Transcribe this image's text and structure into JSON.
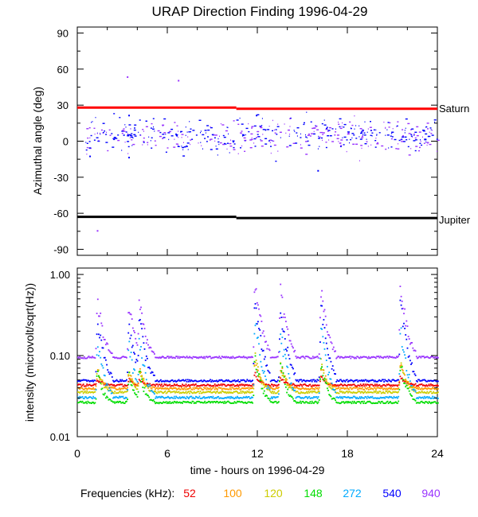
{
  "title": "URAP Direction Finding  1996-04-29",
  "colors": {
    "axis": "#000000",
    "saturn_line": "#ff0000",
    "jupiter_line": "#000000",
    "blue_points": "#0000ff",
    "purple_points": "#9933ff"
  },
  "chart_data": [
    {
      "type": "scatter",
      "panel": "top",
      "title": "URAP Direction Finding  1996-04-29",
      "xlabel": "",
      "ylabel": "Azimuthal angle (deg)",
      "xlim": [
        0,
        24
      ],
      "ylim": [
        -95,
        95
      ],
      "yticks": [
        90,
        60,
        30,
        0,
        -30,
        -60,
        -90
      ],
      "ytick_labels": [
        "90",
        "60",
        "30",
        "0",
        "-30",
        "-60",
        "-90"
      ],
      "reference_lines": [
        {
          "name": "Saturn",
          "segments": [
            {
              "x": [
                0,
                10.6
              ],
              "y": 28
            },
            {
              "x": [
                10.6,
                24
              ],
              "y": 27
            }
          ]
        },
        {
          "name": "Jupiter",
          "segments": [
            {
              "x": [
                0,
                10.6
              ],
              "y": -63
            },
            {
              "x": [
                10.6,
                24
              ],
              "y": -64
            }
          ]
        }
      ],
      "scatter_band": {
        "x": [
          0.5,
          24
        ],
        "center": 5,
        "spread": 12,
        "colors": [
          "#0000ff",
          "#9933ff"
        ]
      },
      "outliers": [
        {
          "x": 3.3,
          "y": 54,
          "color": "#9933ff"
        },
        {
          "x": 6.7,
          "y": 51,
          "color": "#9933ff"
        },
        {
          "x": 1.3,
          "y": -74,
          "color": "#9933ff"
        },
        {
          "x": 16.0,
          "y": -24,
          "color": "#0000ff"
        },
        {
          "x": 3.4,
          "y": 22,
          "color": "#0000ff"
        },
        {
          "x": 11.9,
          "y": 22,
          "color": "#0000ff"
        },
        {
          "x": 0.8,
          "y": -12,
          "color": "#0000ff"
        },
        {
          "x": 3.4,
          "y": -13,
          "color": "#0000ff"
        }
      ]
    },
    {
      "type": "line",
      "panel": "bottom",
      "xlabel": "time - hours on 1996-04-29",
      "ylabel": "intensity (microvolt/sqrt(Hz))",
      "yscale": "log",
      "xlim": [
        0,
        24
      ],
      "ylim": [
        0.01,
        1.2
      ],
      "xticks": [
        0,
        6,
        12,
        18,
        24
      ],
      "xtick_labels": [
        "0",
        "6",
        "12",
        "18",
        "24"
      ],
      "yticks": [
        1.0,
        0.1,
        0.01
      ],
      "ytick_labels": [
        "1.00",
        "0.10",
        "0.01"
      ],
      "bursts": [
        {
          "t": 1.3,
          "scale": 0.55
        },
        {
          "t": 3.4,
          "scale": 0.45
        },
        {
          "t": 4.1,
          "scale": 0.5
        },
        {
          "t": 11.8,
          "scale": 1.0
        },
        {
          "t": 13.5,
          "scale": 0.75
        },
        {
          "t": 16.2,
          "scale": 0.8
        },
        {
          "t": 21.5,
          "scale": 0.85
        }
      ],
      "series": [
        {
          "name": "52",
          "color": "#ee0000",
          "baseline": 0.044,
          "peak": 0.06
        },
        {
          "name": "100",
          "color": "#ff9900",
          "baseline": 0.04,
          "peak": 0.09
        },
        {
          "name": "120",
          "color": "#cccc00",
          "baseline": 0.036,
          "peak": 0.1
        },
        {
          "name": "148",
          "color": "#00dd00",
          "baseline": 0.027,
          "peak": 0.1
        },
        {
          "name": "272",
          "color": "#00aaff",
          "baseline": 0.031,
          "peak": 0.27
        },
        {
          "name": "540",
          "color": "#0000ff",
          "baseline": 0.05,
          "peak": 0.5
        },
        {
          "name": "940",
          "color": "#9933ff",
          "baseline": 0.097,
          "peak": 0.8
        }
      ]
    }
  ],
  "right_labels": {
    "saturn": "Saturn",
    "jupiter": "Jupiter"
  },
  "legend": {
    "label": "Frequencies (kHz):",
    "items": [
      {
        "text": "52",
        "color": "#ee0000"
      },
      {
        "text": "100",
        "color": "#ff9900"
      },
      {
        "text": "120",
        "color": "#cccc00"
      },
      {
        "text": "148",
        "color": "#00dd00"
      },
      {
        "text": "272",
        "color": "#00aaff"
      },
      {
        "text": "540",
        "color": "#0000ff"
      },
      {
        "text": "940",
        "color": "#9933ff"
      }
    ]
  }
}
